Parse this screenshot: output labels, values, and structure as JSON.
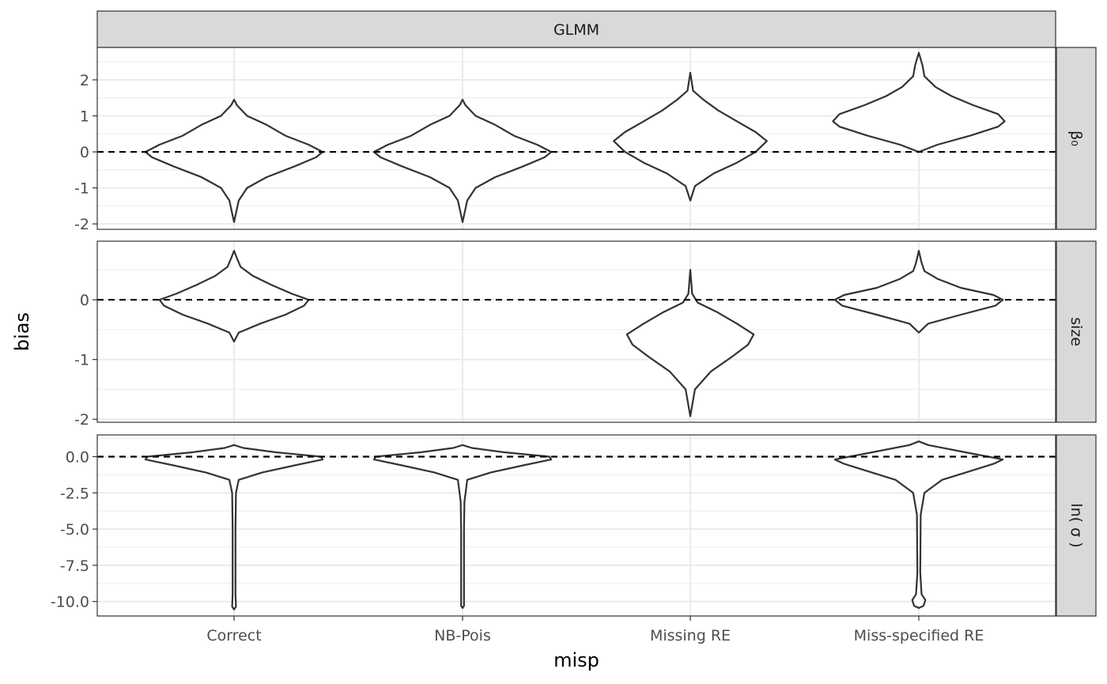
{
  "chart_data": {
    "type": "violin",
    "facet_column": "GLMM",
    "xlabel": "misp",
    "ylabel": "bias",
    "categories": [
      "Correct",
      "NB-Pois",
      "Missing RE",
      "Miss-specified RE"
    ],
    "reference_line": {
      "y": 0,
      "style": "dashed"
    },
    "grid": true,
    "panels": [
      {
        "label": "β₀",
        "ylim": [
          -2.15,
          2.9
        ],
        "yticks": [
          -2,
          -1,
          0,
          1,
          2
        ],
        "ytick_labels": [
          "-2",
          "-1",
          "0",
          "1",
          "2"
        ],
        "violins": [
          {
            "category": "Correct",
            "profile": [
              [
                -1.95,
                0.0
              ],
              [
                -1.35,
                0.05
              ],
              [
                -1.0,
                0.14
              ],
              [
                -0.7,
                0.35
              ],
              [
                -0.4,
                0.65
              ],
              [
                -0.15,
                0.88
              ],
              [
                0.0,
                0.95
              ],
              [
                0.2,
                0.8
              ],
              [
                0.45,
                0.55
              ],
              [
                0.75,
                0.35
              ],
              [
                1.0,
                0.14
              ],
              [
                1.3,
                0.03
              ],
              [
                1.45,
                0.0
              ]
            ]
          },
          {
            "category": "NB-Pois",
            "profile": [
              [
                -1.95,
                0.0
              ],
              [
                -1.35,
                0.05
              ],
              [
                -1.0,
                0.14
              ],
              [
                -0.7,
                0.35
              ],
              [
                -0.4,
                0.65
              ],
              [
                -0.15,
                0.88
              ],
              [
                0.0,
                0.95
              ],
              [
                0.2,
                0.8
              ],
              [
                0.45,
                0.55
              ],
              [
                0.75,
                0.35
              ],
              [
                1.0,
                0.14
              ],
              [
                1.3,
                0.03
              ],
              [
                1.45,
                0.0
              ]
            ]
          },
          {
            "category": "Missing RE",
            "profile": [
              [
                -1.35,
                0.0
              ],
              [
                -0.95,
                0.05
              ],
              [
                -0.6,
                0.25
              ],
              [
                -0.3,
                0.5
              ],
              [
                0.0,
                0.7
              ],
              [
                0.3,
                0.82
              ],
              [
                0.55,
                0.7
              ],
              [
                0.85,
                0.5
              ],
              [
                1.15,
                0.3
              ],
              [
                1.45,
                0.14
              ],
              [
                1.7,
                0.03
              ],
              [
                2.2,
                0.0
              ]
            ]
          },
          {
            "category": "Miss-specified RE",
            "profile": [
              [
                0.0,
                0.0
              ],
              [
                0.2,
                0.2
              ],
              [
                0.45,
                0.55
              ],
              [
                0.7,
                0.85
              ],
              [
                0.85,
                0.92
              ],
              [
                1.05,
                0.85
              ],
              [
                1.3,
                0.58
              ],
              [
                1.55,
                0.35
              ],
              [
                1.8,
                0.18
              ],
              [
                2.1,
                0.06
              ],
              [
                2.4,
                0.04
              ],
              [
                2.75,
                0.0
              ]
            ]
          }
        ]
      },
      {
        "label": "size",
        "ylim": [
          -2.05,
          0.98
        ],
        "yticks": [
          -2,
          -1,
          0
        ],
        "ytick_labels": [
          "-2",
          "-1",
          "0"
        ],
        "violins": [
          {
            "category": "Correct",
            "profile": [
              [
                -0.7,
                0.0
              ],
              [
                -0.55,
                0.05
              ],
              [
                -0.4,
                0.28
              ],
              [
                -0.25,
                0.55
              ],
              [
                -0.1,
                0.75
              ],
              [
                0.0,
                0.8
              ],
              [
                0.1,
                0.62
              ],
              [
                0.25,
                0.4
              ],
              [
                0.4,
                0.2
              ],
              [
                0.55,
                0.07
              ],
              [
                0.7,
                0.03
              ],
              [
                0.82,
                0.0
              ]
            ]
          },
          {
            "category": "Missing RE",
            "profile": [
              [
                -1.95,
                0.0
              ],
              [
                -1.5,
                0.05
              ],
              [
                -1.2,
                0.22
              ],
              [
                -0.95,
                0.45
              ],
              [
                -0.75,
                0.62
              ],
              [
                -0.58,
                0.68
              ],
              [
                -0.4,
                0.5
              ],
              [
                -0.2,
                0.28
              ],
              [
                -0.05,
                0.08
              ],
              [
                0.1,
                0.02
              ],
              [
                0.5,
                0.0
              ]
            ]
          },
          {
            "category": "Miss-specified RE",
            "profile": [
              [
                -0.55,
                0.0
              ],
              [
                -0.4,
                0.1
              ],
              [
                -0.25,
                0.45
              ],
              [
                -0.1,
                0.82
              ],
              [
                0.0,
                0.9
              ],
              [
                0.08,
                0.8
              ],
              [
                0.2,
                0.45
              ],
              [
                0.35,
                0.2
              ],
              [
                0.48,
                0.06
              ],
              [
                0.62,
                0.03
              ],
              [
                0.82,
                0.0
              ]
            ]
          }
        ]
      },
      {
        "label": "ln( σ )",
        "ylim": [
          -11.0,
          1.5
        ],
        "yticks": [
          -10.0,
          -7.5,
          -5.0,
          -2.5,
          0.0
        ],
        "ytick_labels": [
          "-10.0",
          "-7.5",
          "-5.0",
          "-2.5",
          "0.0"
        ],
        "violins": [
          {
            "category": "Correct",
            "profile": [
              [
                -10.55,
                0.0
              ],
              [
                -10.35,
                0.02
              ],
              [
                -9.5,
                0.015
              ],
              [
                -5.0,
                0.015
              ],
              [
                -2.5,
                0.02
              ],
              [
                -1.6,
                0.05
              ],
              [
                -1.1,
                0.3
              ],
              [
                -0.6,
                0.65
              ],
              [
                -0.2,
                0.95
              ],
              [
                0.0,
                0.93
              ],
              [
                0.3,
                0.45
              ],
              [
                0.6,
                0.1
              ],
              [
                0.8,
                0.0
              ]
            ]
          },
          {
            "category": "NB-Pois",
            "profile": [
              [
                -10.45,
                0.0
              ],
              [
                -10.3,
                0.015
              ],
              [
                -5.0,
                0.015
              ],
              [
                -3.1,
                0.02
              ],
              [
                -1.6,
                0.05
              ],
              [
                -1.1,
                0.3
              ],
              [
                -0.6,
                0.65
              ],
              [
                -0.2,
                0.95
              ],
              [
                0.0,
                0.93
              ],
              [
                0.3,
                0.45
              ],
              [
                0.6,
                0.1
              ],
              [
                0.8,
                0.0
              ]
            ]
          },
          {
            "category": "Miss-specified RE",
            "profile": [
              [
                -10.45,
                0.0
              ],
              [
                -10.3,
                0.05
              ],
              [
                -9.9,
                0.07
              ],
              [
                -9.5,
                0.03
              ],
              [
                -8.0,
                0.015
              ],
              [
                -4.0,
                0.02
              ],
              [
                -2.5,
                0.06
              ],
              [
                -1.6,
                0.25
              ],
              [
                -1.0,
                0.55
              ],
              [
                -0.5,
                0.8
              ],
              [
                -0.2,
                0.9
              ],
              [
                0.3,
                0.5
              ],
              [
                0.8,
                0.1
              ],
              [
                1.05,
                0.0
              ]
            ]
          }
        ]
      }
    ]
  }
}
